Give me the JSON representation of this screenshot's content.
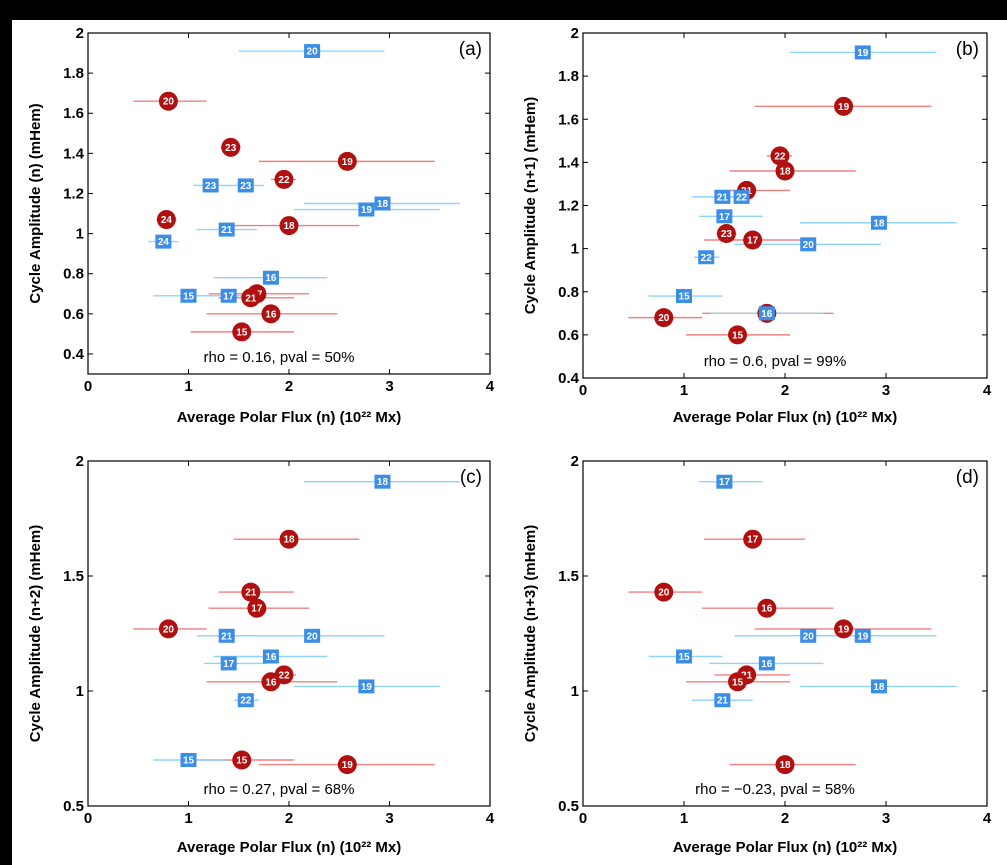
{
  "colors": {
    "background": "#000000",
    "panel": "#ffffff",
    "circle_fill": "#b01010",
    "circle_bar": "#f08080",
    "square_fill": "#3b8ee8",
    "square_bar": "#8fd3f7",
    "marker_text": "#ffffff",
    "axis_text": "#000000"
  },
  "chart_data": [
    {
      "type": "scatter",
      "panel_label": "(a)",
      "xlabel": "Average Polar Flux (n) (10²² Mx)",
      "ylabel": "Cycle Amplitude (n) (mHem)",
      "xlim": [
        0,
        4
      ],
      "ylim": [
        0.3,
        2.0
      ],
      "xticks": [
        "0",
        "1",
        "2",
        "3",
        "4"
      ],
      "yticks": [
        "0.4",
        "0.6",
        "0.8",
        "1",
        "1.2",
        "1.4",
        "1.6",
        "1.8",
        "2"
      ],
      "yticks_values": [
        0.4,
        0.6,
        0.8,
        1.0,
        1.2,
        1.4,
        1.6,
        1.8,
        2.0
      ],
      "annotation": "rho = 0.16, pval = 50%",
      "series": [
        {
          "marker": "circle",
          "points": [
            {
              "label": "20",
              "x": 0.8,
              "y": 1.66,
              "xerr": [
                0.45,
                1.18
              ]
            },
            {
              "label": "23",
              "x": 1.42,
              "y": 1.43,
              "xerr": [
                1.32,
                1.52
              ]
            },
            {
              "label": "19",
              "x": 2.58,
              "y": 1.36,
              "xerr": [
                1.7,
                3.45
              ]
            },
            {
              "label": "22",
              "x": 1.95,
              "y": 1.27,
              "xerr": [
                1.82,
                2.07
              ]
            },
            {
              "label": "24",
              "x": 0.78,
              "y": 1.07,
              "xerr": [
                0.68,
                0.88
              ]
            },
            {
              "label": "18",
              "x": 2.0,
              "y": 1.04,
              "xerr": [
                1.45,
                2.7
              ]
            },
            {
              "label": "17",
              "x": 1.68,
              "y": 0.7,
              "xerr": [
                1.2,
                2.2
              ]
            },
            {
              "label": "21",
              "x": 1.62,
              "y": 0.68,
              "xerr": [
                1.3,
                2.05
              ]
            },
            {
              "label": "16",
              "x": 1.82,
              "y": 0.6,
              "xerr": [
                1.18,
                2.48
              ]
            },
            {
              "label": "15",
              "x": 1.53,
              "y": 0.51,
              "xerr": [
                1.02,
                2.05
              ]
            }
          ]
        },
        {
          "marker": "square",
          "points": [
            {
              "label": "20",
              "x": 2.23,
              "y": 1.91,
              "xerr": [
                1.5,
                2.95
              ]
            },
            {
              "label": "23",
              "x": 1.22,
              "y": 1.24,
              "xerr": [
                1.05,
                1.4
              ]
            },
            {
              "label": "23",
              "x": 1.57,
              "y": 1.24,
              "xerr": [
                1.4,
                1.75
              ]
            },
            {
              "label": "18",
              "x": 2.93,
              "y": 1.15,
              "xerr": [
                2.15,
                3.7
              ]
            },
            {
              "label": "19",
              "x": 2.77,
              "y": 1.12,
              "xerr": [
                2.05,
                3.5
              ]
            },
            {
              "label": "21",
              "x": 1.38,
              "y": 1.02,
              "xerr": [
                1.08,
                1.68
              ]
            },
            {
              "label": "24",
              "x": 0.75,
              "y": 0.96,
              "xerr": [
                0.6,
                0.9
              ]
            },
            {
              "label": "16",
              "x": 1.82,
              "y": 0.78,
              "xerr": [
                1.25,
                2.38
              ]
            },
            {
              "label": "15",
              "x": 1.0,
              "y": 0.69,
              "xerr": [
                0.65,
                1.38
              ]
            },
            {
              "label": "17",
              "x": 1.4,
              "y": 0.69,
              "xerr": [
                1.15,
                1.78
              ]
            }
          ]
        }
      ]
    },
    {
      "type": "scatter",
      "panel_label": "(b)",
      "xlabel": "Average Polar Flux (n) (10²² Mx)",
      "ylabel": "Cycle Amplitude (n+1) (mHem)",
      "xlim": [
        0,
        4
      ],
      "ylim": [
        0.4,
        2.0
      ],
      "xticks": [
        "0",
        "1",
        "2",
        "3",
        "4"
      ],
      "yticks": [
        "0.4",
        "0.6",
        "0.8",
        "1",
        "1.2",
        "1.4",
        "1.6",
        "1.8",
        "2"
      ],
      "yticks_values": [
        0.4,
        0.6,
        0.8,
        1.0,
        1.2,
        1.4,
        1.6,
        1.8,
        2.0
      ],
      "annotation": "rho = 0.6, pval = 99%",
      "series": [
        {
          "marker": "circle",
          "points": [
            {
              "label": "19",
              "x": 2.58,
              "y": 1.66,
              "xerr": [
                1.7,
                3.45
              ]
            },
            {
              "label": "22",
              "x": 1.95,
              "y": 1.43,
              "xerr": [
                1.82,
                2.07
              ]
            },
            {
              "label": "18",
              "x": 2.0,
              "y": 1.36,
              "xerr": [
                1.45,
                2.7
              ]
            },
            {
              "label": "21",
              "x": 1.62,
              "y": 1.27,
              "xerr": [
                1.3,
                2.05
              ]
            },
            {
              "label": "23",
              "x": 1.42,
              "y": 1.07,
              "xerr": [
                1.32,
                1.52
              ]
            },
            {
              "label": "17",
              "x": 1.68,
              "y": 1.04,
              "xerr": [
                1.2,
                2.2
              ]
            },
            {
              "label": "16",
              "x": 1.82,
              "y": 0.7,
              "xerr": [
                1.18,
                2.48
              ]
            },
            {
              "label": "20",
              "x": 0.8,
              "y": 0.68,
              "xerr": [
                0.45,
                1.18
              ]
            },
            {
              "label": "15",
              "x": 1.53,
              "y": 0.6,
              "xerr": [
                1.02,
                2.05
              ]
            }
          ]
        },
        {
          "marker": "square",
          "points": [
            {
              "label": "19",
              "x": 2.77,
              "y": 1.91,
              "xerr": [
                2.05,
                3.5
              ]
            },
            {
              "label": "21",
              "x": 1.38,
              "y": 1.24,
              "xerr": [
                1.08,
                1.68
              ]
            },
            {
              "label": "22",
              "x": 1.57,
              "y": 1.24,
              "xerr": [
                1.45,
                1.7
              ]
            },
            {
              "label": "17",
              "x": 1.4,
              "y": 1.15,
              "xerr": [
                1.15,
                1.78
              ]
            },
            {
              "label": "18",
              "x": 2.93,
              "y": 1.12,
              "xerr": [
                2.15,
                3.7
              ]
            },
            {
              "label": "20",
              "x": 2.23,
              "y": 1.02,
              "xerr": [
                1.5,
                2.95
              ]
            },
            {
              "label": "22",
              "x": 1.22,
              "y": 0.96,
              "xerr": [
                1.1,
                1.35
              ]
            },
            {
              "label": "15",
              "x": 1.0,
              "y": 0.78,
              "xerr": [
                0.65,
                1.38
              ]
            },
            {
              "label": "16",
              "x": 1.82,
              "y": 0.7,
              "xerr": [
                1.25,
                2.38
              ]
            }
          ]
        }
      ]
    },
    {
      "type": "scatter",
      "panel_label": "(c)",
      "xlabel": "Average Polar Flux (n) (10²² Mx)",
      "ylabel": "Cycle Amplitude (n+2) (mHem)",
      "xlim": [
        0,
        4
      ],
      "ylim": [
        0.5,
        2.0
      ],
      "xticks": [
        "0",
        "1",
        "2",
        "3",
        "4"
      ],
      "yticks": [
        "0.5",
        "1",
        "1.5",
        "2"
      ],
      "yticks_values": [
        0.5,
        1.0,
        1.5,
        2.0
      ],
      "annotation": "rho = 0.27, pval = 68%",
      "series": [
        {
          "marker": "circle",
          "points": [
            {
              "label": "18",
              "x": 2.0,
              "y": 1.66,
              "xerr": [
                1.45,
                2.7
              ]
            },
            {
              "label": "21",
              "x": 1.62,
              "y": 1.43,
              "xerr": [
                1.3,
                2.05
              ]
            },
            {
              "label": "17",
              "x": 1.68,
              "y": 1.36,
              "xerr": [
                1.2,
                2.2
              ]
            },
            {
              "label": "20",
              "x": 0.8,
              "y": 1.27,
              "xerr": [
                0.45,
                1.18
              ]
            },
            {
              "label": "22",
              "x": 1.95,
              "y": 1.07,
              "xerr": [
                1.82,
                2.07
              ]
            },
            {
              "label": "16",
              "x": 1.82,
              "y": 1.04,
              "xerr": [
                1.18,
                2.48
              ]
            },
            {
              "label": "15",
              "x": 1.53,
              "y": 0.7,
              "xerr": [
                1.02,
                2.05
              ]
            },
            {
              "label": "19",
              "x": 2.58,
              "y": 0.68,
              "xerr": [
                1.7,
                3.45
              ]
            }
          ]
        },
        {
          "marker": "square",
          "points": [
            {
              "label": "18",
              "x": 2.93,
              "y": 1.91,
              "xerr": [
                2.15,
                3.7
              ]
            },
            {
              "label": "21",
              "x": 1.38,
              "y": 1.24,
              "xerr": [
                1.08,
                1.68
              ]
            },
            {
              "label": "20",
              "x": 2.23,
              "y": 1.24,
              "xerr": [
                1.5,
                2.95
              ]
            },
            {
              "label": "16",
              "x": 1.82,
              "y": 1.15,
              "xerr": [
                1.25,
                2.38
              ]
            },
            {
              "label": "17",
              "x": 1.4,
              "y": 1.12,
              "xerr": [
                1.15,
                1.78
              ]
            },
            {
              "label": "19",
              "x": 2.77,
              "y": 1.02,
              "xerr": [
                2.05,
                3.5
              ]
            },
            {
              "label": "22",
              "x": 1.57,
              "y": 0.96,
              "xerr": [
                1.45,
                1.7
              ]
            },
            {
              "label": "15",
              "x": 1.0,
              "y": 0.7,
              "xerr": [
                0.65,
                1.38
              ]
            }
          ]
        }
      ]
    },
    {
      "type": "scatter",
      "panel_label": "(d)",
      "xlabel": "Average Polar Flux (n) (10²² Mx)",
      "ylabel": "Cycle Amplitude (n+3) (mHem)",
      "xlim": [
        0,
        4
      ],
      "ylim": [
        0.5,
        2.0
      ],
      "xticks": [
        "0",
        "1",
        "2",
        "3",
        "4"
      ],
      "yticks": [
        "0.5",
        "1",
        "1.5",
        "2"
      ],
      "yticks_values": [
        0.5,
        1.0,
        1.5,
        2.0
      ],
      "annotation": "rho = −0.23, pval = 58%",
      "series": [
        {
          "marker": "circle",
          "points": [
            {
              "label": "17",
              "x": 1.68,
              "y": 1.66,
              "xerr": [
                1.2,
                2.2
              ]
            },
            {
              "label": "20",
              "x": 0.8,
              "y": 1.43,
              "xerr": [
                0.45,
                1.18
              ]
            },
            {
              "label": "16",
              "x": 1.82,
              "y": 1.36,
              "xerr": [
                1.18,
                2.48
              ]
            },
            {
              "label": "19",
              "x": 2.58,
              "y": 1.27,
              "xerr": [
                1.7,
                3.45
              ]
            },
            {
              "label": "21",
              "x": 1.62,
              "y": 1.07,
              "xerr": [
                1.3,
                2.05
              ]
            },
            {
              "label": "15",
              "x": 1.53,
              "y": 1.04,
              "xerr": [
                1.02,
                2.05
              ]
            },
            {
              "label": "18",
              "x": 2.0,
              "y": 0.68,
              "xerr": [
                1.45,
                2.7
              ]
            }
          ]
        },
        {
          "marker": "square",
          "points": [
            {
              "label": "17",
              "x": 1.4,
              "y": 1.91,
              "xerr": [
                1.15,
                1.78
              ]
            },
            {
              "label": "20",
              "x": 2.23,
              "y": 1.24,
              "xerr": [
                1.5,
                2.95
              ]
            },
            {
              "label": "19",
              "x": 2.77,
              "y": 1.24,
              "xerr": [
                2.05,
                3.5
              ]
            },
            {
              "label": "15",
              "x": 1.0,
              "y": 1.15,
              "xerr": [
                0.65,
                1.38
              ]
            },
            {
              "label": "16",
              "x": 1.82,
              "y": 1.12,
              "xerr": [
                1.25,
                2.38
              ]
            },
            {
              "label": "18",
              "x": 2.93,
              "y": 1.02,
              "xerr": [
                2.15,
                3.7
              ]
            },
            {
              "label": "21",
              "x": 1.38,
              "y": 0.96,
              "xerr": [
                1.08,
                1.68
              ]
            }
          ]
        }
      ]
    }
  ]
}
